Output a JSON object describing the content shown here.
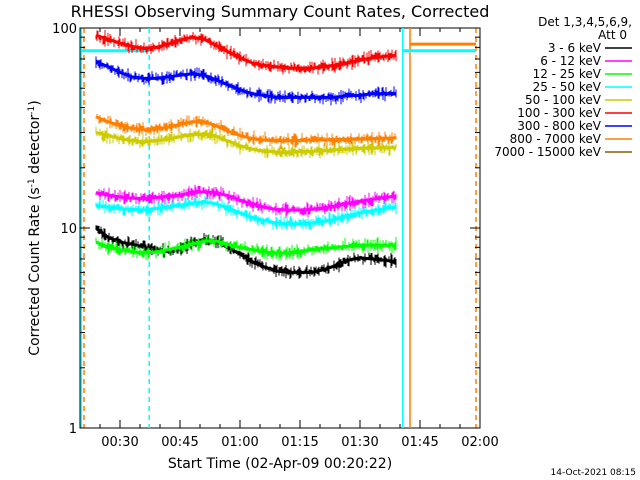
{
  "chart_data": {
    "type": "line",
    "title": "RHESSI Observing Summary Count Rates, Corrected",
    "xlabel": "Start Time (02-Apr-09 00:20:22)",
    "ylabel_main": "Corrected Count Rate (s",
    "ylabel_sup1": "-1",
    "ylabel_mid": " detector",
    "ylabel_sup2": "-1",
    "ylabel_end": ")",
    "y_scale": "log",
    "ylim": [
      1,
      100
    ],
    "xlim_minutes": [
      20,
      120
    ],
    "y_ticks": [
      {
        "value": 1,
        "label": "1"
      },
      {
        "value": 10,
        "label": "10"
      },
      {
        "value": 100,
        "label": "100"
      }
    ],
    "x_ticks": [
      {
        "value": 30,
        "label": "00:30"
      },
      {
        "value": 45,
        "label": "00:45"
      },
      {
        "value": 60,
        "label": "01:00"
      },
      {
        "value": 75,
        "label": "01:15"
      },
      {
        "value": 90,
        "label": "01:30"
      },
      {
        "value": 105,
        "label": "01:45"
      },
      {
        "value": 120,
        "label": "02:00"
      }
    ],
    "legend_header": [
      "Det 1,3,4,5,6,9,",
      "Att 0"
    ],
    "series": [
      {
        "name": "3 - 6 keV",
        "color": "#000000",
        "x": [
          24,
          27,
          30,
          33,
          36,
          39,
          42,
          45,
          48,
          51,
          54,
          57,
          60,
          63,
          66,
          69,
          72,
          75,
          78,
          81,
          84,
          87,
          90,
          93,
          96,
          99
        ],
        "y": [
          10.0,
          9.0,
          8.5,
          8.3,
          8.0,
          7.8,
          7.6,
          7.8,
          8.4,
          8.8,
          8.6,
          8.0,
          7.4,
          6.8,
          6.4,
          6.1,
          6.0,
          6.0,
          6.0,
          6.2,
          6.5,
          6.9,
          7.1,
          7.0,
          6.9,
          6.8
        ]
      },
      {
        "name": "6 - 12 keV",
        "color": "#ff00ff",
        "x": [
          24,
          27,
          30,
          33,
          36,
          39,
          42,
          45,
          48,
          51,
          54,
          57,
          60,
          63,
          66,
          69,
          72,
          75,
          78,
          81,
          84,
          87,
          90,
          93,
          96,
          99
        ],
        "y": [
          15.0,
          14.6,
          14.3,
          14.1,
          14.0,
          14.2,
          14.4,
          14.6,
          15.0,
          15.2,
          15.0,
          14.5,
          13.8,
          13.2,
          12.7,
          12.4,
          12.3,
          12.3,
          12.4,
          12.6,
          12.9,
          13.3,
          13.6,
          13.9,
          14.2,
          14.4
        ]
      },
      {
        "name": "12 - 25 keV",
        "color": "#00ff00",
        "x": [
          24,
          27,
          30,
          33,
          36,
          39,
          42,
          45,
          48,
          51,
          54,
          57,
          60,
          63,
          66,
          69,
          72,
          75,
          78,
          81,
          84,
          87,
          90,
          93,
          96,
          99
        ],
        "y": [
          8.5,
          8.0,
          7.8,
          7.6,
          7.5,
          7.6,
          7.8,
          8.0,
          8.3,
          8.6,
          8.6,
          8.3,
          8.0,
          7.8,
          7.6,
          7.5,
          7.5,
          7.6,
          7.8,
          7.9,
          8.0,
          8.1,
          8.2,
          8.2,
          8.2,
          8.2
        ]
      },
      {
        "name": "25 - 50 keV",
        "color": "#00ffff",
        "x": [
          24,
          27,
          30,
          33,
          36,
          39,
          42,
          45,
          48,
          51,
          54,
          57,
          60,
          63,
          66,
          69,
          72,
          75,
          78,
          81,
          84,
          87,
          90,
          93,
          96,
          99
        ],
        "y": [
          13.0,
          12.7,
          12.5,
          12.4,
          12.3,
          12.5,
          12.8,
          13.0,
          13.3,
          13.5,
          13.2,
          12.6,
          11.9,
          11.3,
          10.9,
          10.6,
          10.5,
          10.5,
          10.6,
          10.8,
          11.1,
          11.5,
          11.9,
          12.2,
          12.5,
          12.7
        ]
      },
      {
        "name": "50 - 100 keV",
        "color": "#cccc00",
        "x": [
          24,
          27,
          30,
          33,
          36,
          39,
          42,
          45,
          48,
          51,
          54,
          57,
          60,
          63,
          66,
          69,
          72,
          75,
          78,
          81,
          84,
          87,
          90,
          93,
          96,
          99
        ],
        "y": [
          30.0,
          29.0,
          28.0,
          27.3,
          27.0,
          27.3,
          27.8,
          28.6,
          29.3,
          29.5,
          28.8,
          27.2,
          25.8,
          24.8,
          24.2,
          24.0,
          24.0,
          24.1,
          24.2,
          24.4,
          24.6,
          24.8,
          25.0,
          25.1,
          25.2,
          25.2
        ]
      },
      {
        "name": "100 - 300 keV",
        "color": "#ff0000",
        "x": [
          24,
          27,
          30,
          33,
          36,
          39,
          42,
          45,
          48,
          51,
          54,
          57,
          60,
          63,
          66,
          69,
          72,
          75,
          78,
          81,
          84,
          87,
          90,
          93,
          96,
          99
        ],
        "y": [
          92,
          88,
          84,
          81,
          79,
          80,
          83,
          87,
          90,
          88,
          82,
          76,
          71,
          67,
          65,
          64,
          63,
          63,
          63,
          64,
          65,
          67,
          69,
          71,
          72,
          73
        ]
      },
      {
        "name": "300 - 800 keV",
        "color": "#0000ff",
        "x": [
          24,
          27,
          30,
          33,
          36,
          39,
          42,
          45,
          48,
          51,
          54,
          57,
          60,
          63,
          66,
          69,
          72,
          75,
          78,
          81,
          84,
          87,
          90,
          93,
          96,
          99
        ],
        "y": [
          68,
          64,
          60,
          57,
          56,
          56,
          57,
          58,
          59,
          58,
          55,
          52,
          49,
          47,
          46,
          45,
          45,
          45,
          45,
          45,
          45,
          46,
          46,
          47,
          47,
          47
        ]
      },
      {
        "name": "800 - 7000 keV",
        "color": "#ff8000",
        "x": [
          24,
          27,
          30,
          33,
          36,
          39,
          42,
          45,
          48,
          51,
          54,
          57,
          60,
          63,
          66,
          69,
          72,
          75,
          78,
          81,
          84,
          87,
          90,
          93,
          96,
          99
        ],
        "y": [
          36.0,
          34.0,
          32.5,
          31.5,
          31.0,
          31.2,
          32.0,
          33.0,
          34.0,
          34.0,
          32.5,
          30.5,
          29.0,
          28.0,
          27.5,
          27.3,
          27.3,
          27.4,
          27.5,
          27.6,
          27.7,
          27.8,
          27.9,
          28.0,
          28.1,
          28.2
        ]
      },
      {
        "name": "7000 - 15000 keV",
        "color": "#806000",
        "x": [],
        "y": []
      }
    ],
    "vertical_lines": [
      {
        "x": 20.3,
        "color": "#00ffff",
        "dash": false
      },
      {
        "x": 21.0,
        "color": "#ff8000",
        "dash": true
      },
      {
        "x": 37.3,
        "color": "#00ffff",
        "dash": true
      },
      {
        "x": 100.7,
        "color": "#00ffff",
        "dash": false
      },
      {
        "x": 102.5,
        "color": "#ff8000",
        "dash": false
      },
      {
        "x": 119.0,
        "color": "#ff8000",
        "dash": true
      }
    ],
    "horizontal_levels": [
      {
        "x0": 20.3,
        "x1": 37.3,
        "y": 77,
        "color": "#00ffff"
      },
      {
        "x0": 100.7,
        "x1": 119.0,
        "y": 77,
        "color": "#00ffff"
      },
      {
        "x0": 102.5,
        "x1": 119.0,
        "y": 83,
        "color": "#ff8000"
      }
    ],
    "footer_stamp": "14-Oct-2021 08:15"
  }
}
